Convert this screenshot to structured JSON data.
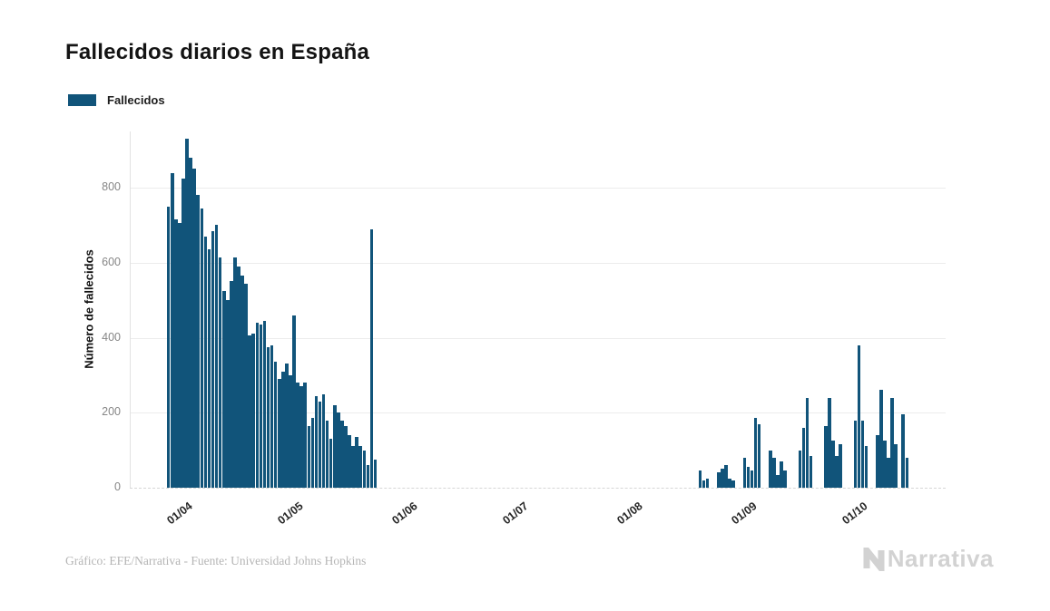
{
  "header": {
    "title": "Fallecidos diarios en España"
  },
  "legend": {
    "items": [
      {
        "label": "Fallecidos",
        "color": "#11547a"
      }
    ]
  },
  "footer": {
    "credit": "Gráfico: EFE/Narrativa - Fuente: Universidad Johns Hopkins",
    "brand": "Narrativa"
  },
  "chart_data": {
    "type": "bar",
    "title": "Fallecidos diarios en España",
    "xlabel": "",
    "ylabel": "Número de fallecidos",
    "series_name": "Fallecidos",
    "bar_color": "#11547a",
    "grid": "horizontal",
    "legend_position": "top-left",
    "ylim": [
      0,
      950
    ],
    "yticks": [
      0,
      200,
      400,
      600,
      800
    ],
    "x_domain": [
      "2020-03-18",
      "2020-10-25"
    ],
    "xticks": [
      {
        "label": "01/04",
        "date": "2020-04-01"
      },
      {
        "label": "01/05",
        "date": "2020-05-01"
      },
      {
        "label": "01/06",
        "date": "2020-06-01"
      },
      {
        "label": "01/07",
        "date": "2020-07-01"
      },
      {
        "label": "01/08",
        "date": "2020-08-01"
      },
      {
        "label": "01/09",
        "date": "2020-09-01"
      },
      {
        "label": "01/10",
        "date": "2020-10-01"
      }
    ],
    "points": [
      {
        "date": "2020-03-28",
        "value": 750
      },
      {
        "date": "2020-03-29",
        "value": 840
      },
      {
        "date": "2020-03-30",
        "value": 715
      },
      {
        "date": "2020-03-31",
        "value": 705
      },
      {
        "date": "2020-04-01",
        "value": 825
      },
      {
        "date": "2020-04-02",
        "value": 930
      },
      {
        "date": "2020-04-03",
        "value": 880
      },
      {
        "date": "2020-04-04",
        "value": 850
      },
      {
        "date": "2020-04-05",
        "value": 780
      },
      {
        "date": "2020-04-06",
        "value": 745
      },
      {
        "date": "2020-04-07",
        "value": 670
      },
      {
        "date": "2020-04-08",
        "value": 635
      },
      {
        "date": "2020-04-09",
        "value": 685
      },
      {
        "date": "2020-04-10",
        "value": 700
      },
      {
        "date": "2020-04-11",
        "value": 615
      },
      {
        "date": "2020-04-12",
        "value": 525
      },
      {
        "date": "2020-04-13",
        "value": 500
      },
      {
        "date": "2020-04-14",
        "value": 550
      },
      {
        "date": "2020-04-15",
        "value": 615
      },
      {
        "date": "2020-04-16",
        "value": 590
      },
      {
        "date": "2020-04-17",
        "value": 565
      },
      {
        "date": "2020-04-18",
        "value": 545
      },
      {
        "date": "2020-04-19",
        "value": 405
      },
      {
        "date": "2020-04-20",
        "value": 410
      },
      {
        "date": "2020-04-21",
        "value": 440
      },
      {
        "date": "2020-04-22",
        "value": 435
      },
      {
        "date": "2020-04-23",
        "value": 445
      },
      {
        "date": "2020-04-24",
        "value": 375
      },
      {
        "date": "2020-04-25",
        "value": 380
      },
      {
        "date": "2020-04-26",
        "value": 335
      },
      {
        "date": "2020-04-27",
        "value": 290
      },
      {
        "date": "2020-04-28",
        "value": 310
      },
      {
        "date": "2020-04-29",
        "value": 330
      },
      {
        "date": "2020-04-30",
        "value": 300
      },
      {
        "date": "2020-05-01",
        "value": 460
      },
      {
        "date": "2020-05-02",
        "value": 280
      },
      {
        "date": "2020-05-03",
        "value": 270
      },
      {
        "date": "2020-05-04",
        "value": 280
      },
      {
        "date": "2020-05-05",
        "value": 165
      },
      {
        "date": "2020-05-06",
        "value": 185
      },
      {
        "date": "2020-05-07",
        "value": 245
      },
      {
        "date": "2020-05-08",
        "value": 230
      },
      {
        "date": "2020-05-09",
        "value": 250
      },
      {
        "date": "2020-05-10",
        "value": 180
      },
      {
        "date": "2020-05-11",
        "value": 130
      },
      {
        "date": "2020-05-12",
        "value": 220
      },
      {
        "date": "2020-05-13",
        "value": 200
      },
      {
        "date": "2020-05-14",
        "value": 180
      },
      {
        "date": "2020-05-15",
        "value": 165
      },
      {
        "date": "2020-05-16",
        "value": 140
      },
      {
        "date": "2020-05-17",
        "value": 110
      },
      {
        "date": "2020-05-18",
        "value": 135
      },
      {
        "date": "2020-05-19",
        "value": 110
      },
      {
        "date": "2020-05-20",
        "value": 100
      },
      {
        "date": "2020-05-21",
        "value": 60
      },
      {
        "date": "2020-05-22",
        "value": 690
      },
      {
        "date": "2020-05-23",
        "value": 75
      },
      {
        "date": "2020-08-19",
        "value": 45
      },
      {
        "date": "2020-08-20",
        "value": 20
      },
      {
        "date": "2020-08-21",
        "value": 25
      },
      {
        "date": "2020-08-22",
        "value": 0
      },
      {
        "date": "2020-08-23",
        "value": 0
      },
      {
        "date": "2020-08-24",
        "value": 40
      },
      {
        "date": "2020-08-25",
        "value": 50
      },
      {
        "date": "2020-08-26",
        "value": 60
      },
      {
        "date": "2020-08-27",
        "value": 25
      },
      {
        "date": "2020-08-28",
        "value": 20
      },
      {
        "date": "2020-08-29",
        "value": 0
      },
      {
        "date": "2020-08-30",
        "value": 0
      },
      {
        "date": "2020-08-31",
        "value": 80
      },
      {
        "date": "2020-09-01",
        "value": 55
      },
      {
        "date": "2020-09-02",
        "value": 45
      },
      {
        "date": "2020-09-03",
        "value": 185
      },
      {
        "date": "2020-09-04",
        "value": 170
      },
      {
        "date": "2020-09-05",
        "value": 0
      },
      {
        "date": "2020-09-06",
        "value": 0
      },
      {
        "date": "2020-09-07",
        "value": 100
      },
      {
        "date": "2020-09-08",
        "value": 80
      },
      {
        "date": "2020-09-09",
        "value": 35
      },
      {
        "date": "2020-09-10",
        "value": 70
      },
      {
        "date": "2020-09-11",
        "value": 45
      },
      {
        "date": "2020-09-12",
        "value": 0
      },
      {
        "date": "2020-09-13",
        "value": 0
      },
      {
        "date": "2020-09-14",
        "value": 0
      },
      {
        "date": "2020-09-15",
        "value": 100
      },
      {
        "date": "2020-09-16",
        "value": 160
      },
      {
        "date": "2020-09-17",
        "value": 240
      },
      {
        "date": "2020-09-18",
        "value": 85
      },
      {
        "date": "2020-09-19",
        "value": 0
      },
      {
        "date": "2020-09-20",
        "value": 0
      },
      {
        "date": "2020-09-21",
        "value": 0
      },
      {
        "date": "2020-09-22",
        "value": 165
      },
      {
        "date": "2020-09-23",
        "value": 240
      },
      {
        "date": "2020-09-24",
        "value": 125
      },
      {
        "date": "2020-09-25",
        "value": 85
      },
      {
        "date": "2020-09-26",
        "value": 115
      },
      {
        "date": "2020-09-27",
        "value": 0
      },
      {
        "date": "2020-09-28",
        "value": 0
      },
      {
        "date": "2020-09-29",
        "value": 0
      },
      {
        "date": "2020-09-30",
        "value": 180
      },
      {
        "date": "2020-10-01",
        "value": 380
      },
      {
        "date": "2020-10-02",
        "value": 180
      },
      {
        "date": "2020-10-03",
        "value": 110
      },
      {
        "date": "2020-10-04",
        "value": 0
      },
      {
        "date": "2020-10-05",
        "value": 0
      },
      {
        "date": "2020-10-06",
        "value": 140
      },
      {
        "date": "2020-10-07",
        "value": 260
      },
      {
        "date": "2020-10-08",
        "value": 125
      },
      {
        "date": "2020-10-09",
        "value": 80
      },
      {
        "date": "2020-10-10",
        "value": 240
      },
      {
        "date": "2020-10-11",
        "value": 115
      },
      {
        "date": "2020-10-12",
        "value": 0
      },
      {
        "date": "2020-10-13",
        "value": 195
      },
      {
        "date": "2020-10-14",
        "value": 80
      }
    ]
  }
}
